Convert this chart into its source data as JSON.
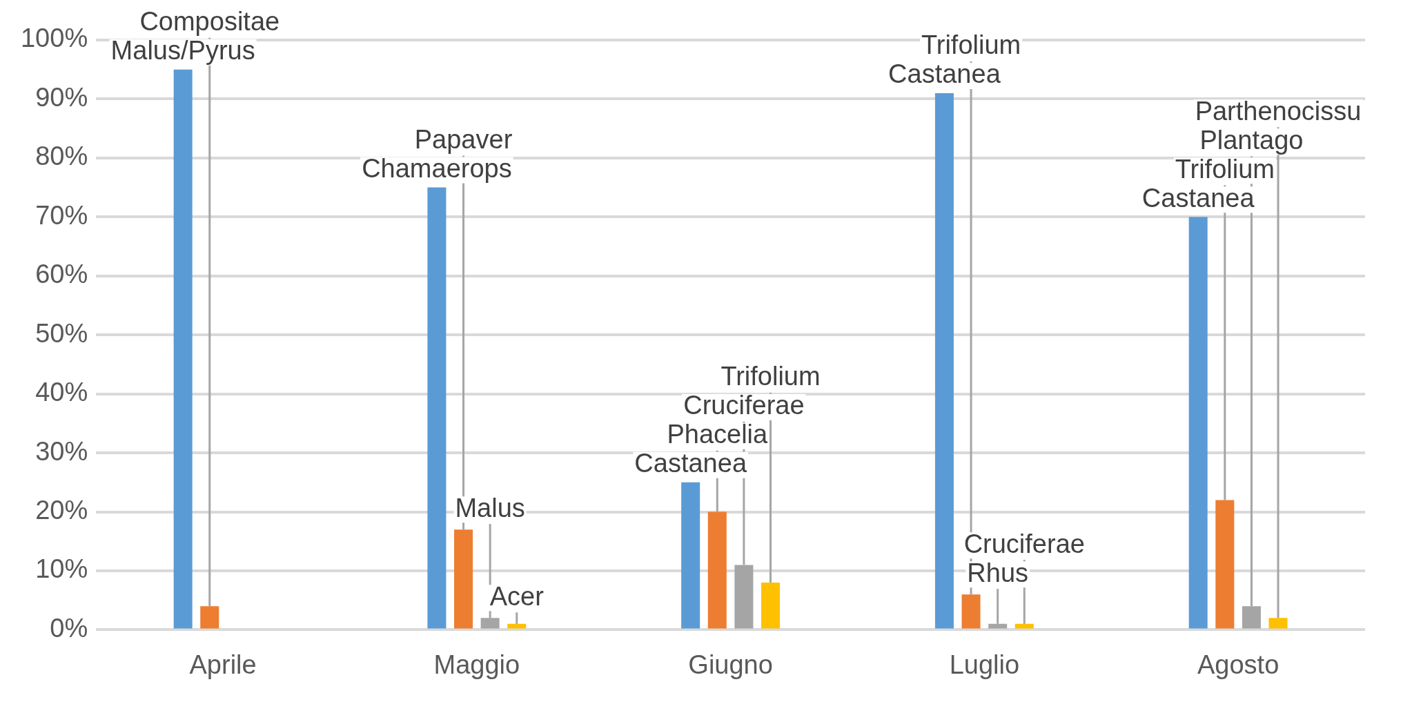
{
  "chart_data": {
    "type": "bar",
    "categories": [
      "Aprile",
      "Maggio",
      "Giugno",
      "Luglio",
      "Agosto"
    ],
    "series": [
      {
        "color": "#5b9bd5",
        "values": [
          95,
          75,
          25,
          91,
          70
        ],
        "value_labels": [
          "Malus/Pyrus",
          "Chamaerops",
          "Castanea",
          "Castanea",
          "Castanea"
        ]
      },
      {
        "color": "#ed7d31",
        "values": [
          4,
          17,
          20,
          6,
          22
        ],
        "value_labels": [
          "Compositae",
          "Papaver",
          "Phacelia",
          "Trifolium",
          "Trifolium"
        ]
      },
      {
        "color": "#a5a5a5",
        "values": [
          null,
          2,
          11,
          1,
          4
        ],
        "value_labels": [
          null,
          "Malus",
          "Cruciferae",
          "Rhus",
          "Plantago"
        ]
      },
      {
        "color": "#ffc000",
        "values": [
          null,
          1,
          8,
          1,
          2
        ],
        "value_labels": [
          null,
          "Acer",
          "Trifolium",
          "Cruciferae",
          "Parthenocissu"
        ]
      }
    ],
    "ylim": [
      0,
      100
    ],
    "yticks": [
      {
        "value": 0,
        "label": "0%"
      },
      {
        "value": 10,
        "label": "10%"
      },
      {
        "value": 20,
        "label": "20%"
      },
      {
        "value": 30,
        "label": "30%"
      },
      {
        "value": 40,
        "label": "40%"
      },
      {
        "value": 50,
        "label": "50%"
      },
      {
        "value": 60,
        "label": "60%"
      },
      {
        "value": 70,
        "label": "70%"
      },
      {
        "value": 80,
        "label": "80%"
      },
      {
        "value": 90,
        "label": "90%"
      },
      {
        "value": 100,
        "label": "100%"
      }
    ],
    "grid": "y",
    "legend": false
  }
}
